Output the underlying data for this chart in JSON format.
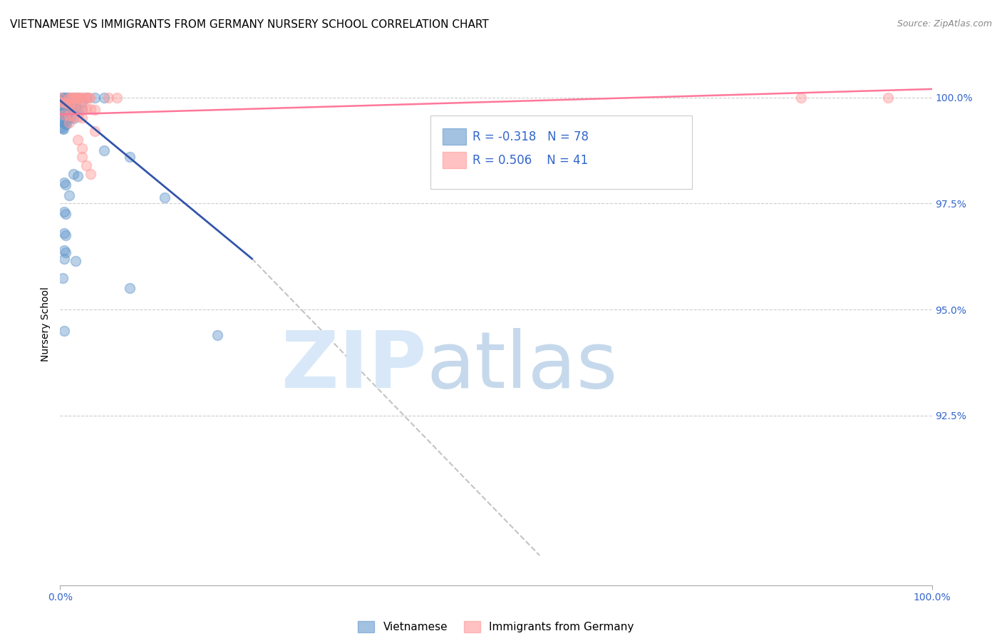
{
  "title": "VIETNAMESE VS IMMIGRANTS FROM GERMANY NURSERY SCHOOL CORRELATION CHART",
  "source": "Source: ZipAtlas.com",
  "ylabel": "Nursery School",
  "ytick_labels": [
    "100.0%",
    "97.5%",
    "95.0%",
    "92.5%"
  ],
  "ytick_values": [
    1.0,
    0.975,
    0.95,
    0.925
  ],
  "xlim": [
    0.0,
    1.0
  ],
  "ylim": [
    0.885,
    1.008
  ],
  "R1": -0.318,
  "N1": 78,
  "R2": 0.506,
  "N2": 41,
  "blue_color": "#6699CC",
  "pink_color": "#FF9999",
  "blue_line_color": "#3355AA",
  "pink_line_color": "#FF7799",
  "title_fontsize": 11,
  "source_fontsize": 9,
  "axis_label_fontsize": 10,
  "tick_fontsize": 10,
  "legend_label1": "Vietnamese",
  "legend_label2": "Immigrants from Germany",
  "blue_scatter": [
    [
      0.002,
      1.0
    ],
    [
      0.004,
      1.0
    ],
    [
      0.006,
      1.0
    ],
    [
      0.008,
      1.0
    ],
    [
      0.01,
      1.0
    ],
    [
      0.015,
      1.0
    ],
    [
      0.02,
      1.0
    ],
    [
      0.03,
      1.0
    ],
    [
      0.04,
      1.0
    ],
    [
      0.05,
      1.0
    ],
    [
      0.002,
      0.9995
    ],
    [
      0.003,
      0.9993
    ],
    [
      0.005,
      0.9992
    ],
    [
      0.007,
      0.9991
    ],
    [
      0.009,
      0.9993
    ],
    [
      0.012,
      0.9992
    ],
    [
      0.018,
      0.9991
    ],
    [
      0.025,
      0.999
    ],
    [
      0.002,
      0.9985
    ],
    [
      0.003,
      0.9983
    ],
    [
      0.004,
      0.9982
    ],
    [
      0.005,
      0.9981
    ],
    [
      0.006,
      0.998
    ],
    [
      0.007,
      0.9979
    ],
    [
      0.008,
      0.9978
    ],
    [
      0.009,
      0.9977
    ],
    [
      0.01,
      0.9976
    ],
    [
      0.012,
      0.9975
    ],
    [
      0.015,
      0.9974
    ],
    [
      0.018,
      0.9973
    ],
    [
      0.02,
      0.9972
    ],
    [
      0.025,
      0.9971
    ],
    [
      0.003,
      0.997
    ],
    [
      0.002,
      0.9965
    ],
    [
      0.003,
      0.9963
    ],
    [
      0.004,
      0.9961
    ],
    [
      0.005,
      0.996
    ],
    [
      0.006,
      0.9958
    ],
    [
      0.007,
      0.9957
    ],
    [
      0.008,
      0.9956
    ],
    [
      0.009,
      0.9955
    ],
    [
      0.01,
      0.9953
    ],
    [
      0.012,
      0.9952
    ],
    [
      0.015,
      0.9951
    ],
    [
      0.002,
      0.9945
    ],
    [
      0.003,
      0.9943
    ],
    [
      0.004,
      0.9941
    ],
    [
      0.005,
      0.994
    ],
    [
      0.006,
      0.9938
    ],
    [
      0.007,
      0.9937
    ],
    [
      0.002,
      0.993
    ],
    [
      0.003,
      0.9928
    ],
    [
      0.004,
      0.9926
    ],
    [
      0.05,
      0.9875
    ],
    [
      0.08,
      0.986
    ],
    [
      0.015,
      0.982
    ],
    [
      0.02,
      0.9815
    ],
    [
      0.005,
      0.98
    ],
    [
      0.006,
      0.9795
    ],
    [
      0.01,
      0.977
    ],
    [
      0.12,
      0.9765
    ],
    [
      0.005,
      0.973
    ],
    [
      0.006,
      0.9725
    ],
    [
      0.005,
      0.968
    ],
    [
      0.006,
      0.9675
    ],
    [
      0.005,
      0.964
    ],
    [
      0.006,
      0.9635
    ],
    [
      0.005,
      0.962
    ],
    [
      0.018,
      0.9615
    ],
    [
      0.003,
      0.9575
    ],
    [
      0.08,
      0.955
    ],
    [
      0.005,
      0.945
    ],
    [
      0.18,
      0.944
    ]
  ],
  "pink_scatter": [
    [
      0.0,
      1.0
    ],
    [
      0.01,
      1.0
    ],
    [
      0.012,
      1.0
    ],
    [
      0.014,
      1.0
    ],
    [
      0.016,
      1.0
    ],
    [
      0.018,
      1.0
    ],
    [
      0.02,
      1.0
    ],
    [
      0.022,
      1.0
    ],
    [
      0.024,
      1.0
    ],
    [
      0.026,
      1.0
    ],
    [
      0.03,
      1.0
    ],
    [
      0.032,
      1.0
    ],
    [
      0.034,
      1.0
    ],
    [
      0.055,
      1.0
    ],
    [
      0.065,
      1.0
    ],
    [
      0.95,
      1.0
    ],
    [
      0.85,
      1.0
    ],
    [
      0.0,
      0.999
    ],
    [
      0.005,
      0.9988
    ],
    [
      0.008,
      0.9987
    ],
    [
      0.01,
      0.9985
    ],
    [
      0.012,
      0.9983
    ],
    [
      0.016,
      0.9981
    ],
    [
      0.02,
      0.9979
    ],
    [
      0.025,
      0.9977
    ],
    [
      0.03,
      0.9975
    ],
    [
      0.035,
      0.9973
    ],
    [
      0.04,
      0.9971
    ],
    [
      0.005,
      0.996
    ],
    [
      0.01,
      0.9958
    ],
    [
      0.015,
      0.9956
    ],
    [
      0.02,
      0.9954
    ],
    [
      0.025,
      0.9952
    ],
    [
      0.01,
      0.994
    ],
    [
      0.04,
      0.992
    ],
    [
      0.02,
      0.99
    ],
    [
      0.025,
      0.988
    ],
    [
      0.025,
      0.986
    ],
    [
      0.03,
      0.984
    ],
    [
      0.035,
      0.982
    ]
  ],
  "blue_trendline": [
    [
      0.0,
      0.9993
    ],
    [
      0.22,
      0.962
    ]
  ],
  "pink_trendline": [
    [
      0.0,
      0.996
    ],
    [
      1.0,
      1.002
    ]
  ],
  "gray_dashed_trendline": [
    [
      0.22,
      0.962
    ],
    [
      0.55,
      0.892
    ]
  ]
}
